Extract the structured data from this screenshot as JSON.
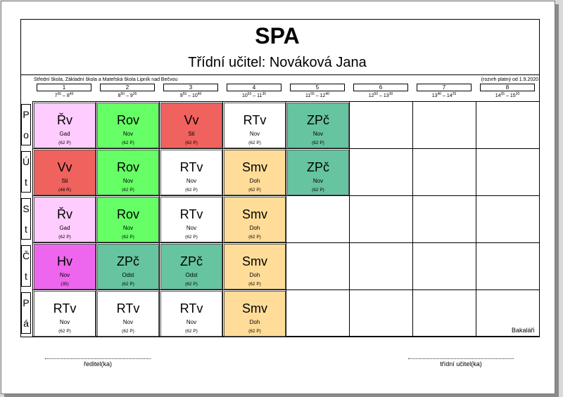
{
  "class_name": "SPA",
  "teacher_line": "Třídní učitel: Nováková Jana",
  "school": "Střední škola, Základní škola a Mateřská škola Lipník nad Bečvou",
  "validity": "(rozvrh platný od 1.9.2020",
  "periods": [
    {
      "num": "1",
      "start": "7",
      "start_min": "55",
      "end": "8",
      "end_min": "40"
    },
    {
      "num": "2",
      "start": "8",
      "start_min": "50",
      "end": "9",
      "end_min": "35"
    },
    {
      "num": "3",
      "start": "9",
      "start_min": "55",
      "end": "10",
      "end_min": "40"
    },
    {
      "num": "4",
      "start": "10",
      "start_min": "50",
      "end": "11",
      "end_min": "35"
    },
    {
      "num": "5",
      "start": "11",
      "start_min": "55",
      "end": "12",
      "end_min": "40"
    },
    {
      "num": "6",
      "start": "12",
      "start_min": "50",
      "end": "13",
      "end_min": "30"
    },
    {
      "num": "7",
      "start": "13",
      "start_min": "40",
      "end": "14",
      "end_min": "25"
    },
    {
      "num": "8",
      "start": "14",
      "start_min": "35",
      "end": "15",
      "end_min": "20"
    }
  ],
  "days": [
    {
      "letters": [
        "P",
        "o"
      ],
      "lessons": [
        {
          "subject": "Řv",
          "teacher": "Gad",
          "room": "(62 P)",
          "color": "#ffccff"
        },
        {
          "subject": "Rov",
          "teacher": "Nov",
          "room": "(62 P)",
          "color": "#66ff66"
        },
        {
          "subject": "Vv",
          "teacher": "Sti",
          "room": "(62 P)",
          "color": "#f0625e"
        },
        {
          "subject": "RTv",
          "teacher": "Nov",
          "room": "(62 P)",
          "color": "#ffffff"
        },
        {
          "subject": "ZPč",
          "teacher": "Nov",
          "room": "(62 P)",
          "color": "#66c4a0"
        }
      ]
    },
    {
      "letters": [
        "Ú",
        "t"
      ],
      "lessons": [
        {
          "subject": "Vv",
          "teacher": "Sti",
          "room": "(48 R)",
          "color": "#f0625e"
        },
        {
          "subject": "Rov",
          "teacher": "Nov",
          "room": "(62 P)",
          "color": "#66ff66"
        },
        {
          "subject": "RTv",
          "teacher": "Nov",
          "room": "(62 P)",
          "color": "#ffffff"
        },
        {
          "subject": "Smv",
          "teacher": "Doh",
          "room": "(62 P)",
          "color": "#ffdd99"
        },
        {
          "subject": "ZPč",
          "teacher": "Nov",
          "room": "(62 P)",
          "color": "#66c4a0"
        }
      ]
    },
    {
      "letters": [
        "S",
        "t"
      ],
      "lessons": [
        {
          "subject": "Řv",
          "teacher": "Gad",
          "room": "(62 P)",
          "color": "#ffccff"
        },
        {
          "subject": "Rov",
          "teacher": "Nov",
          "room": "(62 P)",
          "color": "#66ff66"
        },
        {
          "subject": "RTv",
          "teacher": "Nov",
          "room": "(62 P)",
          "color": "#ffffff"
        },
        {
          "subject": "Smv",
          "teacher": "Doh",
          "room": "(62 P)",
          "color": "#ffdd99"
        }
      ]
    },
    {
      "letters": [
        "Č",
        "t"
      ],
      "lessons": [
        {
          "subject": "Hv",
          "teacher": "Nov",
          "room": "(35)",
          "color": "#ee66ee"
        },
        {
          "subject": "ZPč",
          "teacher": "Odst",
          "room": "(62 P)",
          "color": "#66c4a0"
        },
        {
          "subject": "ZPč",
          "teacher": "Odst",
          "room": "(62 P)",
          "color": "#66c4a0"
        },
        {
          "subject": "Smv",
          "teacher": "Doh",
          "room": "(62 P)",
          "color": "#ffdd99"
        }
      ]
    },
    {
      "letters": [
        "P",
        "á"
      ],
      "lessons": [
        {
          "subject": "RTv",
          "teacher": "Nov",
          "room": "(62 P)",
          "color": "#ffffff"
        },
        {
          "subject": "RTv",
          "teacher": "Nov",
          "room": "(62 P)",
          "color": "#ffffff"
        },
        {
          "subject": "RTv",
          "teacher": "Nov",
          "room": "(62 P)",
          "color": "#ffffff"
        },
        {
          "subject": "Smv",
          "teacher": "Doh",
          "room": "(62 P)",
          "color": "#ffdd99"
        }
      ]
    }
  ],
  "software": "Bakaláři",
  "signatures": {
    "director": "ředitel(ka)",
    "class_teacher": "třídní učitel(ka)"
  }
}
